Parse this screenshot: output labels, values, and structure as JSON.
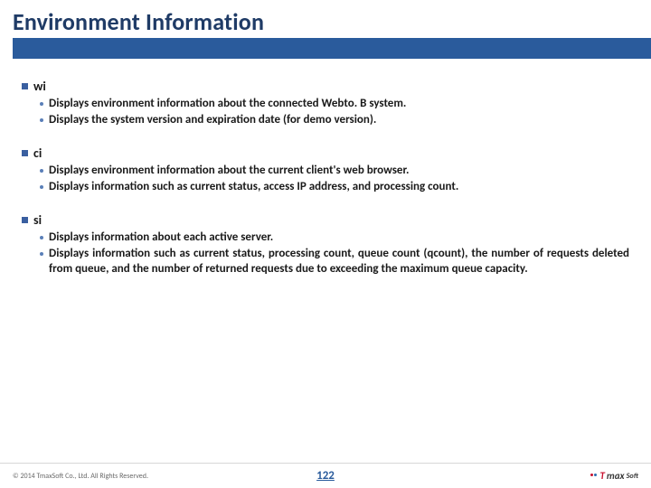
{
  "title": "Environment Information",
  "title_color": "#1f3b66",
  "title_fontsize": 26,
  "underline_color": "#2a5b9c",
  "header_band_color": "#2a5b9c",
  "section_marker_color": "#3a5fa0",
  "bullet_dot_color": "#5a7fb8",
  "body_text_color": "#1a1a1a",
  "body_fontsize": 13,
  "section_head_fontsize": 14,
  "sections": {
    "wi": {
      "name": "wi",
      "b0": "Displays environment information about the connected Webto. B system.",
      "b1": "Displays the system version and expiration date (for demo version)."
    },
    "ci": {
      "name": "ci",
      "b0": "Displays environment information about the current client's web browser.",
      "b1": "Displays information such as current status, access IP address, and processing count."
    },
    "si": {
      "name": "si",
      "b0": "Displays information about each active server.",
      "b1": "Displays information such as current status, processing count, queue count (qcount), the number of requests deleted from queue, and the number of returned requests due to exceeding the maximum queue capacity."
    }
  },
  "footer": {
    "copyright": "© 2014 TmaxSoft Co., Ltd. All Rights Reserved.",
    "copyright_fontsize": 8,
    "page_number": "122",
    "page_number_color": "#2a5b9c",
    "page_number_fontsize": 13,
    "logo_t": "T",
    "logo_rest": "max",
    "logo_sub": "Soft",
    "logo_fontsize": 11
  }
}
